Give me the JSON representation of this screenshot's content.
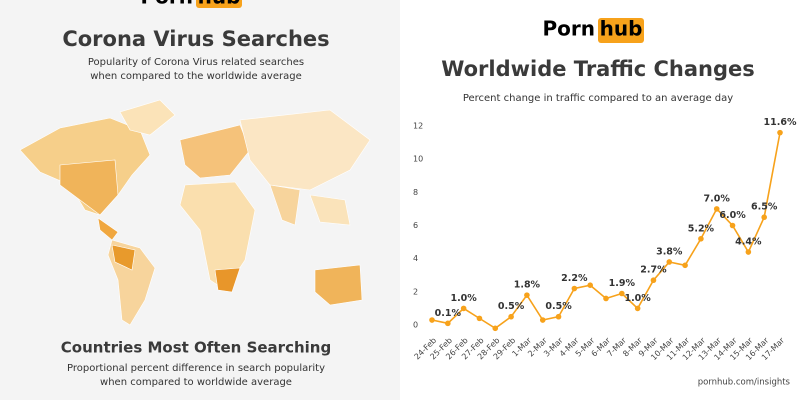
{
  "left_panel": {
    "logo": {
      "left": "Porn",
      "right": "hub"
    },
    "title": "Corona Virus Searches",
    "subtitle": [
      "Popularity of Corona Virus related searches",
      "when compared to the worldwide average"
    ],
    "section_title": "Countries Most Often Searching",
    "section_subtitle": [
      "Proportional percent difference in search popularity",
      "when compared to worldwide average"
    ]
  },
  "chart_data": {
    "type": "line",
    "logo": {
      "left": "Porn",
      "right": "hub"
    },
    "title": "Worldwide Traffic Changes",
    "subtitle": "Percent change in traffic compared to an average day",
    "source": "pornhub.com/insights",
    "categories": [
      "24-Feb",
      "25-Feb",
      "26-Feb",
      "27-Feb",
      "28-Feb",
      "29-Feb",
      "1-Mar",
      "2-Mar",
      "3-Mar",
      "4-Mar",
      "5-Mar",
      "6-Mar",
      "7-Mar",
      "8-Mar",
      "9-Mar",
      "10-Mar",
      "11-Mar",
      "12-Mar",
      "13-Mar",
      "14-Mar",
      "15-Mar",
      "16-Mar",
      "17-Mar"
    ],
    "values": [
      0.3,
      0.1,
      1.0,
      0.4,
      -0.2,
      0.5,
      1.8,
      0.3,
      0.5,
      2.2,
      2.4,
      1.6,
      1.9,
      1.0,
      2.7,
      3.8,
      3.6,
      5.2,
      7.0,
      6.0,
      4.4,
      6.5,
      11.6
    ],
    "value_labels": [
      null,
      "0.1%",
      "1.0%",
      null,
      null,
      "0.5%",
      "1.8%",
      null,
      "0.5%",
      "2.2%",
      null,
      null,
      "1.9%",
      "1.0%",
      "2.7%",
      "3.8%",
      null,
      "5.2%",
      "7.0%",
      "6.0%",
      "4.4%",
      "6.5%",
      "11.6%"
    ],
    "color": "#f7a21b",
    "ylim": [
      0,
      12
    ],
    "yticks": [
      0,
      2,
      4,
      6,
      8,
      10,
      12
    ],
    "grid": false
  }
}
